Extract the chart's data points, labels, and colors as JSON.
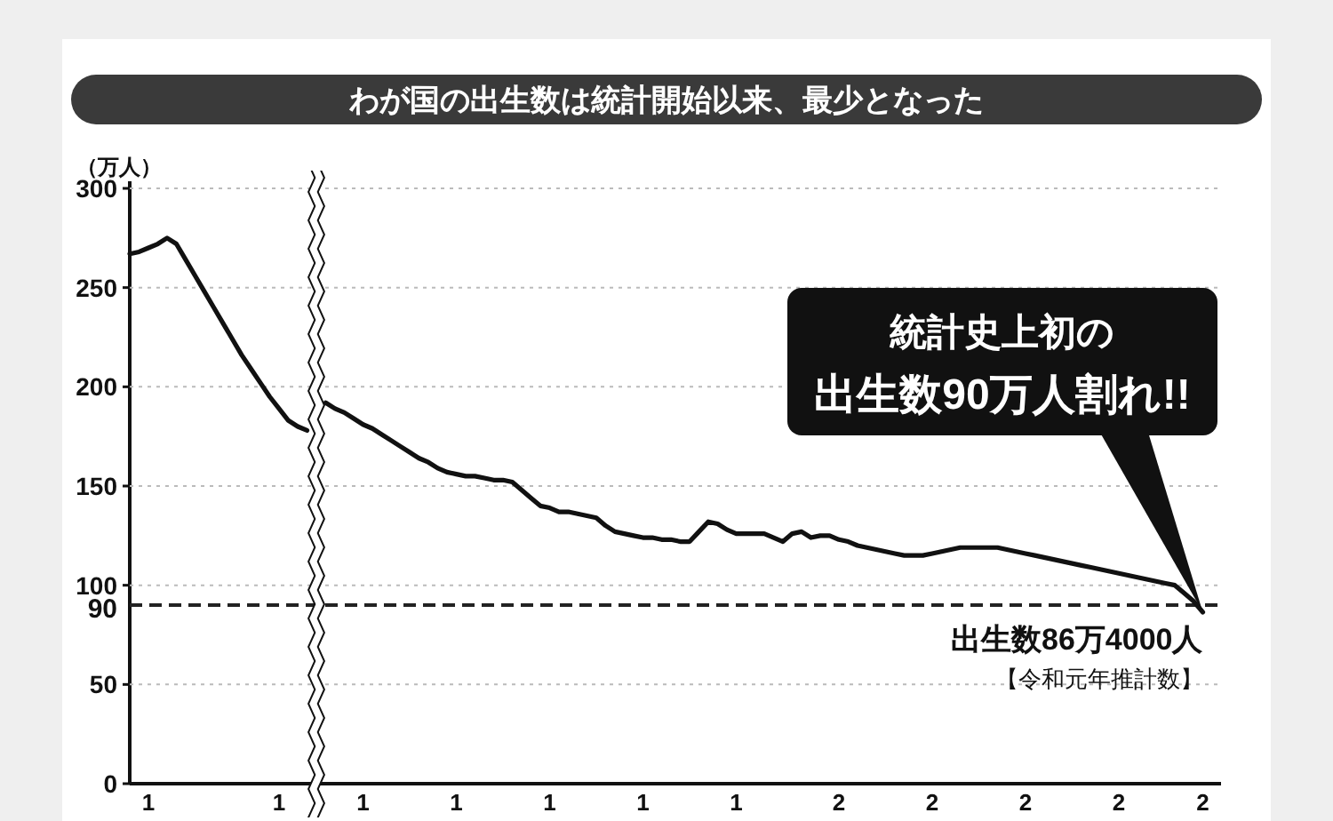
{
  "chart_data": {
    "type": "line",
    "title": "わが国の出生数は統計開始以来、最少となった",
    "ylabel": "（万人）",
    "categories": [
      null,
      null,
      "1",
      null,
      null,
      null,
      null,
      null,
      null,
      null,
      null,
      null,
      null,
      null,
      null,
      null,
      "1",
      null,
      null,
      null,
      null,
      null,
      null,
      null,
      null,
      "1",
      null,
      null,
      null,
      null,
      null,
      null,
      null,
      null,
      null,
      "1",
      null,
      null,
      null,
      null,
      null,
      null,
      null,
      null,
      null,
      "1",
      null,
      null,
      null,
      null,
      null,
      null,
      null,
      null,
      null,
      "1",
      null,
      null,
      null,
      null,
      null,
      null,
      null,
      null,
      null,
      "1",
      null,
      null,
      null,
      null,
      null,
      null,
      null,
      null,
      null,
      null,
      "2",
      null,
      null,
      null,
      null,
      null,
      null,
      null,
      null,
      null,
      "2",
      null,
      null,
      null,
      null,
      null,
      null,
      null,
      null,
      null,
      "2",
      null,
      null,
      null,
      null,
      null,
      null,
      null,
      null,
      null,
      "2",
      null,
      null,
      null,
      null,
      null,
      null,
      null,
      null,
      "2"
    ],
    "series": [
      {
        "color": "#111111",
        "values": [
          267,
          268,
          270,
          272,
          275,
          272,
          264,
          256,
          248,
          240,
          232,
          224,
          216,
          209,
          202,
          195,
          189,
          183,
          180,
          178,
          null,
          192,
          189,
          187,
          184,
          181,
          179,
          176,
          173,
          170,
          167,
          164,
          162,
          159,
          157,
          156,
          155,
          155,
          154,
          153,
          153,
          152,
          148,
          144,
          140,
          139,
          137,
          137,
          136,
          135,
          134,
          130,
          127,
          126,
          125,
          124,
          124,
          123,
          123,
          122,
          122,
          127,
          132,
          131,
          128,
          126,
          126,
          126,
          126,
          124,
          122,
          126,
          127,
          124,
          125,
          125,
          123,
          122,
          120,
          119,
          118,
          117,
          116,
          115,
          115,
          115,
          116,
          117,
          118,
          119,
          119,
          119,
          119,
          119,
          118,
          117,
          116,
          115,
          114,
          113,
          112,
          111,
          110,
          109,
          108,
          107,
          106,
          105,
          104,
          103,
          102,
          101,
          100,
          96,
          92,
          86.4
        ]
      }
    ],
    "ylim": [
      0,
      300
    ],
    "yticks": [
      0,
      50,
      100,
      150,
      200,
      250,
      300
    ],
    "grid": "y",
    "marker": "none",
    "line_style": "solid",
    "ref_lines": [
      {
        "axis": "y",
        "value": 90,
        "label": "90",
        "line_style": "dashed",
        "color": "#222222"
      }
    ],
    "annotations": [
      "統計史上初の",
      "出生数90万人割れ!!",
      "出生数86万4000人",
      "【令和元年推計数】"
    ]
  }
}
